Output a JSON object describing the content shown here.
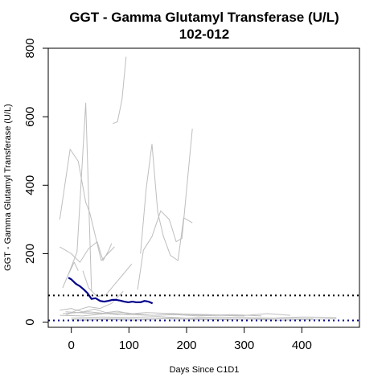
{
  "chart_data": {
    "type": "line",
    "title": "GGT - Gamma Glutamyl Transferase (U/L)",
    "subtitle": "102-012",
    "xlabel": "Days Since C1D1",
    "ylabel": "GGT - Gamma Glutamyl Transferase (U/L)",
    "xlim": [
      -40,
      500
    ],
    "ylim": [
      -15,
      800
    ],
    "x_ticks": [
      0,
      100,
      200,
      300,
      400
    ],
    "y_ticks": [
      0,
      200,
      400,
      600,
      800
    ],
    "grid": false,
    "legend": "none",
    "reference_lines": [
      {
        "y": 78,
        "color": "#000000",
        "style": "dotted"
      },
      {
        "y": 5,
        "color": "#00008B",
        "style": "dotted"
      }
    ],
    "highlight_color": "#00008B",
    "background_color": "#BEBEBE",
    "series": [
      {
        "highlight": true,
        "x": [
          -5,
          0,
          8,
          15,
          22,
          28,
          35,
          42,
          50,
          57,
          64,
          71,
          78,
          85,
          92,
          99,
          106,
          113,
          120,
          127,
          134,
          141
        ],
        "y": [
          130,
          125,
          112,
          105,
          95,
          85,
          68,
          70,
          62,
          60,
          62,
          65,
          65,
          63,
          60,
          58,
          60,
          58,
          58,
          62,
          60,
          55
        ]
      },
      {
        "x": [
          -20,
          -2,
          12,
          25,
          32,
          52,
          75
        ],
        "y": [
          300,
          505,
          470,
          350,
          320,
          180,
          220
        ]
      },
      {
        "x": [
          -5,
          10,
          25,
          35
        ],
        "y": [
          140,
          205,
          640,
          90
        ]
      },
      {
        "x": [
          72,
          80,
          88,
          95
        ],
        "y": [
          580,
          585,
          650,
          775
        ]
      },
      {
        "x": [
          -20,
          0,
          15,
          30,
          45,
          55,
          65,
          70
        ],
        "y": [
          220,
          200,
          175,
          215,
          235,
          180,
          210,
          230
        ]
      },
      {
        "x": [
          115,
          125,
          140,
          155,
          170,
          182,
          192,
          210
        ],
        "y": [
          95,
          210,
          250,
          325,
          300,
          235,
          245,
          565
        ]
      },
      {
        "x": [
          120,
          130,
          140,
          150,
          160,
          172,
          185,
          195,
          210
        ],
        "y": [
          200,
          390,
          520,
          320,
          250,
          195,
          180,
          305,
          290
        ]
      },
      {
        "x": [
          -15,
          -5,
          5,
          12
        ],
        "y": [
          100,
          140,
          175,
          150
        ]
      },
      {
        "x": [
          20,
          30,
          45,
          60,
          75,
          90,
          105
        ],
        "y": [
          150,
          100,
          75,
          80,
          110,
          140,
          170
        ]
      },
      {
        "x": [
          -10,
          10,
          30,
          50,
          70,
          90
        ],
        "y": [
          20,
          35,
          45,
          40,
          55,
          90
        ]
      },
      {
        "x": [
          -20,
          20,
          60,
          100,
          140,
          180,
          220,
          260,
          300
        ],
        "y": [
          20,
          18,
          25,
          22,
          20,
          22,
          18,
          20,
          18
        ]
      },
      {
        "x": [
          0,
          50,
          100,
          150,
          200,
          250,
          300,
          350,
          400,
          460
        ],
        "y": [
          12,
          15,
          14,
          16,
          12,
          15,
          14,
          12,
          15,
          14
        ]
      },
      {
        "x": [
          -10,
          40,
          90,
          140,
          190,
          240,
          290,
          340,
          380
        ],
        "y": [
          30,
          25,
          28,
          20,
          24,
          22,
          18,
          25,
          20
        ]
      },
      {
        "x": [
          0,
          60,
          120,
          180,
          240,
          300,
          360,
          420
        ],
        "y": [
          8,
          10,
          9,
          12,
          10,
          9,
          11,
          10
        ]
      },
      {
        "x": [
          -15,
          30,
          80,
          130,
          180,
          230,
          280,
          330
        ],
        "y": [
          25,
          30,
          22,
          28,
          25,
          20,
          22,
          18
        ]
      },
      {
        "x": [
          10,
          60,
          110,
          160,
          210,
          260,
          310,
          360,
          410,
          460
        ],
        "y": [
          5,
          8,
          6,
          10,
          8,
          7,
          9,
          6,
          8,
          10
        ]
      },
      {
        "x": [
          -20,
          0,
          20,
          40,
          60,
          80,
          100
        ],
        "y": [
          35,
          40,
          30,
          38,
          28,
          32,
          25
        ]
      }
    ]
  }
}
